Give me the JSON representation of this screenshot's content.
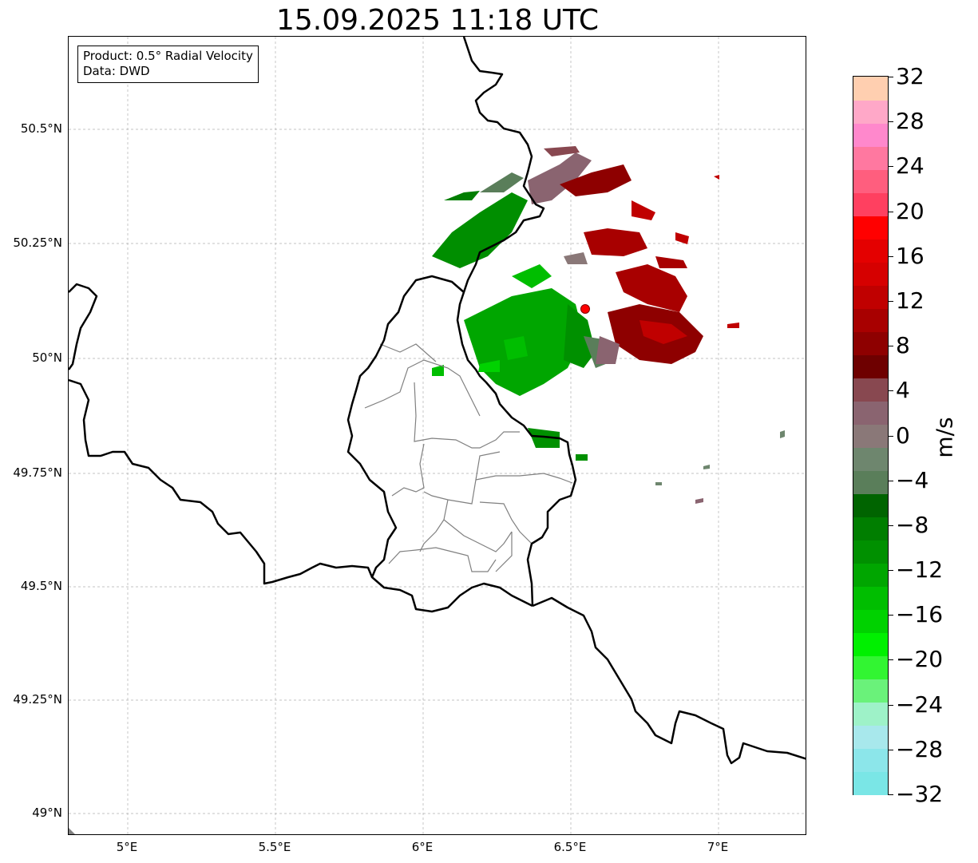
{
  "title": "15.09.2025 11:18 UTC",
  "info": {
    "product": "Product: 0.5° Radial Velocity",
    "data_source": "Data: DWD"
  },
  "map": {
    "x_ticks": [
      "5°E",
      "5.5°E",
      "6°E",
      "6.5°E",
      "7°E"
    ],
    "y_ticks": [
      "50.5°N",
      "50.25°N",
      "50°N",
      "49.75°N",
      "49.5°N",
      "49.25°N",
      "49°N"
    ],
    "gridlines": true,
    "extent": {
      "lon": [
        4.8,
        7.3
      ],
      "lat": [
        48.95,
        50.7
      ]
    },
    "radar_site": {
      "lon": 6.55,
      "lat": 50.11,
      "color": "#ff0000"
    },
    "border_color": "#000000",
    "district_color": "#808080"
  },
  "colorbar": {
    "unit": "m/s",
    "range": [
      -32,
      32
    ],
    "tick_labels": [
      "32",
      "28",
      "24",
      "20",
      "16",
      "12",
      "8",
      "4",
      "0",
      "−4",
      "−8",
      "−12",
      "−16",
      "−20",
      "−24",
      "−28",
      "−32"
    ],
    "colors": [
      "#7ae6e6",
      "#8ce6ea",
      "#a8e8ec",
      "#9ef2c8",
      "#6af27a",
      "#32f532",
      "#00f000",
      "#00d200",
      "#00be00",
      "#00a600",
      "#009000",
      "#007e00",
      "#006400",
      "#5a7e5a",
      "#6e866e",
      "#8a7878",
      "#8a6470",
      "#884850",
      "#6e0000",
      "#8e0000",
      "#a80000",
      "#c00000",
      "#d60000",
      "#e40000",
      "#ff0000",
      "#ff4060",
      "#ff5e7e",
      "#ff78a0",
      "#ff88cc",
      "#ffa8c8",
      "#ffcfb0"
    ]
  }
}
